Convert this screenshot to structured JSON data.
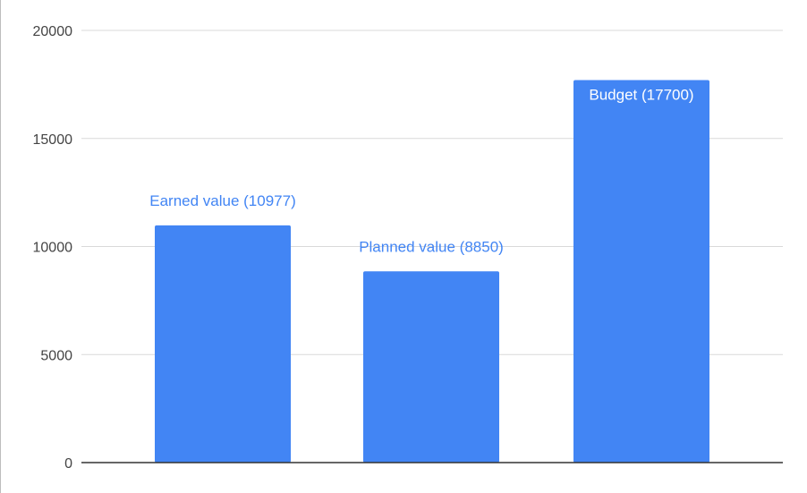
{
  "chart_data": {
    "type": "bar",
    "categories": [
      "Earned value",
      "Planned value",
      "Budget"
    ],
    "values": [
      10977,
      8850,
      17700
    ],
    "data_labels": [
      "Earned value (10977)",
      "Planned value (8850)",
      "Budget (17700)"
    ],
    "y_ticks": [
      "0",
      "5000",
      "10000",
      "15000",
      "20000"
    ],
    "ylim": [
      0,
      20000
    ],
    "grid": true,
    "legend": "none",
    "colors": {
      "bar": "#4285f4",
      "label_outside": "#4285f4",
      "label_inside": "#ffffff",
      "gridline": "#d9d9d9",
      "baseline": "#333333"
    }
  }
}
